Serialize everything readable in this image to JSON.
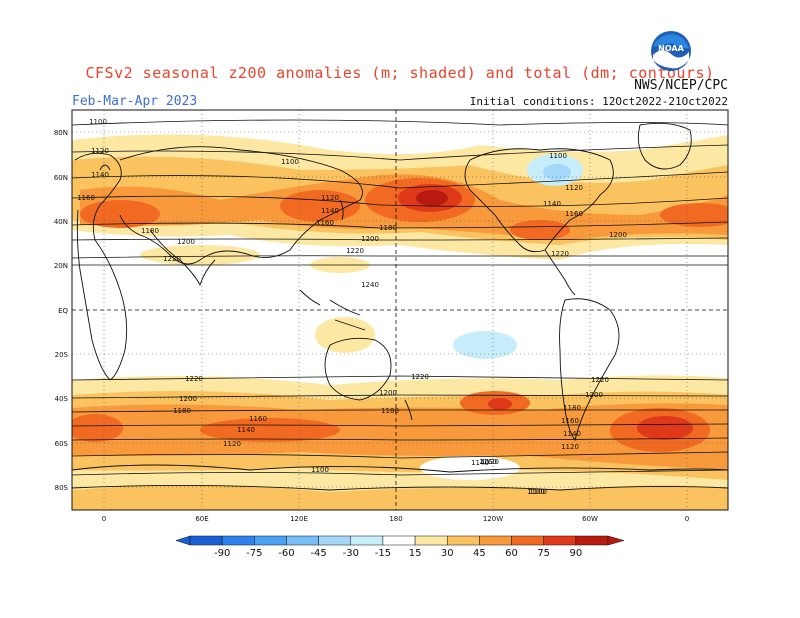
{
  "header": {
    "title": "CFSv2 seasonal z200 anomalies (m; shaded) and total (dm; contours)",
    "season": "Feb-Mar-Apr 2023",
    "initial_conditions": "Initial conditions: 12Oct2022-21Oct2022",
    "agency": "NWS/NCEP/CPC",
    "logo_text": "NOAA"
  },
  "map": {
    "lat_labels": [
      "80N",
      "60N",
      "40N",
      "20N",
      "EQ",
      "20S",
      "40S",
      "60S",
      "80S"
    ],
    "lon_labels": [
      "0",
      "60E",
      "120E",
      "180",
      "120W",
      "60W",
      "0"
    ],
    "contour_labels": [
      "1100",
      "1120",
      "1140",
      "1160",
      "1180",
      "1200",
      "1220",
      "1100",
      "1120",
      "1140",
      "1160",
      "1180",
      "1200",
      "1220",
      "1240",
      "1100",
      "1120",
      "1140",
      "1160",
      "1200",
      "1220",
      "1220",
      "1200",
      "1180",
      "1160",
      "1140",
      "1120",
      "1100",
      "1220",
      "1200",
      "1180",
      "1160",
      "1140",
      "1120",
      "1100",
      "1220",
      "1200",
      "1180",
      "1160",
      "1140",
      "1120",
      "1100"
    ]
  },
  "colorbar": {
    "ticks": [
      "-90",
      "-75",
      "-60",
      "-45",
      "-30",
      "-15",
      "15",
      "30",
      "45",
      "60",
      "75",
      "90"
    ],
    "colors": [
      "#1a5fd6",
      "#2d82ee",
      "#4aa0f5",
      "#78bff7",
      "#a4d8f8",
      "#c6edf9",
      "#ffffff",
      "#fde8a3",
      "#fbc260",
      "#f89a3c",
      "#f26a22",
      "#e0391a",
      "#b81a10"
    ]
  },
  "colors": {
    "title": "#e8432e",
    "season": "#3b6fd1"
  }
}
